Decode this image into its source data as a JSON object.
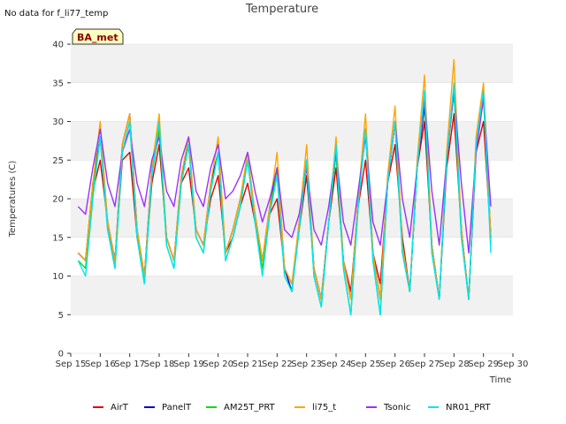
{
  "page": {
    "title": "Temperature",
    "no_data_note": "No data for f_li77_temp",
    "badge": "BA_met"
  },
  "chart_data": {
    "type": "line",
    "title": "Temperature",
    "xlabel": "Time",
    "ylabel": "Temperatures (C)",
    "x_ticks": [
      "Sep 15",
      "Sep 16",
      "Sep 17",
      "Sep 18",
      "Sep 19",
      "Sep 20",
      "Sep 21",
      "Sep 22",
      "Sep 23",
      "Sep 24",
      "Sep 25",
      "Sep 26",
      "Sep 27",
      "Sep 28",
      "Sep 29",
      "Sep 30"
    ],
    "xlim": [
      15,
      30
    ],
    "ylim": [
      0,
      40
    ],
    "y_ticks": [
      0,
      5,
      10,
      15,
      20,
      25,
      30,
      35,
      40
    ],
    "grid": "horizontal bands",
    "legend_position": "bottom",
    "x": [
      15.25,
      15.5,
      15.75,
      16.0,
      16.25,
      16.5,
      16.75,
      17.0,
      17.25,
      17.5,
      17.75,
      18.0,
      18.25,
      18.5,
      18.75,
      19.0,
      19.25,
      19.5,
      19.75,
      20.0,
      20.25,
      20.5,
      20.75,
      21.0,
      21.25,
      21.5,
      21.75,
      22.0,
      22.25,
      22.5,
      22.75,
      23.0,
      23.25,
      23.5,
      23.75,
      24.0,
      24.25,
      24.5,
      24.75,
      25.0,
      25.25,
      25.5,
      25.75,
      26.0,
      26.25,
      26.5,
      26.75,
      27.0,
      27.25,
      27.5,
      27.75,
      28.0,
      28.25,
      28.5,
      28.75,
      29.0,
      29.25
    ],
    "series": [
      {
        "name": "AirT",
        "color": "#e00000",
        "values": [
          13,
          12,
          21,
          25,
          17,
          12,
          25,
          26,
          15,
          10,
          22,
          27,
          15,
          12,
          22,
          24,
          16,
          14,
          20,
          23,
          13,
          15,
          19,
          22,
          17,
          12,
          18,
          20,
          11,
          9,
          16,
          23,
          11,
          7,
          17,
          24,
          12,
          8,
          19,
          25,
          13,
          9,
          22,
          27,
          15,
          8,
          24,
          30,
          14,
          7,
          24,
          31,
          16,
          7,
          26,
          30,
          15
        ]
      },
      {
        "name": "PanelT",
        "color": "#0000cc",
        "values": [
          13,
          12,
          22,
          28,
          17,
          12,
          27,
          31,
          16,
          10,
          24,
          29,
          15,
          12,
          23,
          27,
          16,
          14,
          22,
          26,
          13,
          16,
          20,
          25,
          18,
          12,
          19,
          24,
          11,
          8,
          17,
          25,
          11,
          7,
          17,
          26,
          12,
          7,
          20,
          29,
          13,
          7,
          22,
          30,
          14,
          8,
          24,
          32,
          14,
          7,
          25,
          34,
          16,
          7,
          27,
          34,
          15
        ]
      },
      {
        "name": "AM25T_PRT",
        "color": "#00dd00",
        "values": [
          12,
          11,
          21,
          28,
          16,
          11,
          26,
          30,
          15,
          9,
          23,
          29,
          14,
          11,
          22,
          27,
          15,
          13,
          21,
          26,
          12,
          15,
          19,
          25,
          17,
          11,
          18,
          24,
          10,
          8,
          16,
          25,
          10,
          6,
          17,
          26,
          11,
          5,
          19,
          29,
          12,
          5,
          22,
          30,
          13,
          8,
          24,
          33,
          13,
          7,
          25,
          34,
          15,
          7,
          27,
          33,
          14
        ]
      },
      {
        "name": "li75_t",
        "color": "#ffa500",
        "values": [
          13,
          12,
          22,
          30,
          17,
          12,
          27,
          31,
          16,
          10,
          24,
          31,
          15,
          12,
          23,
          28,
          16,
          14,
          22,
          28,
          13,
          16,
          20,
          26,
          18,
          12,
          19,
          26,
          11,
          9,
          17,
          27,
          11,
          7,
          17,
          28,
          12,
          7,
          20,
          31,
          13,
          7,
          23,
          32,
          14,
          8,
          25,
          36,
          14,
          7,
          26,
          38,
          16,
          7,
          28,
          35,
          15
        ]
      },
      {
        "name": "Tsonic",
        "color": "#9b30ff",
        "values": [
          19,
          18,
          24,
          29,
          22,
          19,
          26,
          29,
          22,
          19,
          25,
          28,
          21,
          19,
          25,
          28,
          21,
          19,
          24,
          27,
          20,
          21,
          23,
          26,
          21,
          17,
          20,
          24,
          16,
          15,
          18,
          24,
          16,
          14,
          19,
          26,
          17,
          14,
          21,
          28,
          17,
          14,
          22,
          30,
          20,
          15,
          24,
          33,
          21,
          14,
          25,
          34,
          22,
          13,
          26,
          33,
          19
        ]
      },
      {
        "name": "NR01_PRT",
        "color": "#00e5ee",
        "values": [
          12,
          10,
          20,
          28,
          16,
          11,
          26,
          30,
          15,
          9,
          23,
          30,
          14,
          11,
          22,
          27,
          15,
          13,
          21,
          26,
          12,
          15,
          19,
          25,
          17,
          10,
          18,
          23,
          10,
          8,
          16,
          25,
          10,
          6,
          17,
          27,
          11,
          5,
          19,
          29,
          12,
          5,
          22,
          30,
          13,
          8,
          24,
          34,
          13,
          7,
          25,
          35,
          15,
          7,
          27,
          34,
          13
        ]
      }
    ]
  }
}
